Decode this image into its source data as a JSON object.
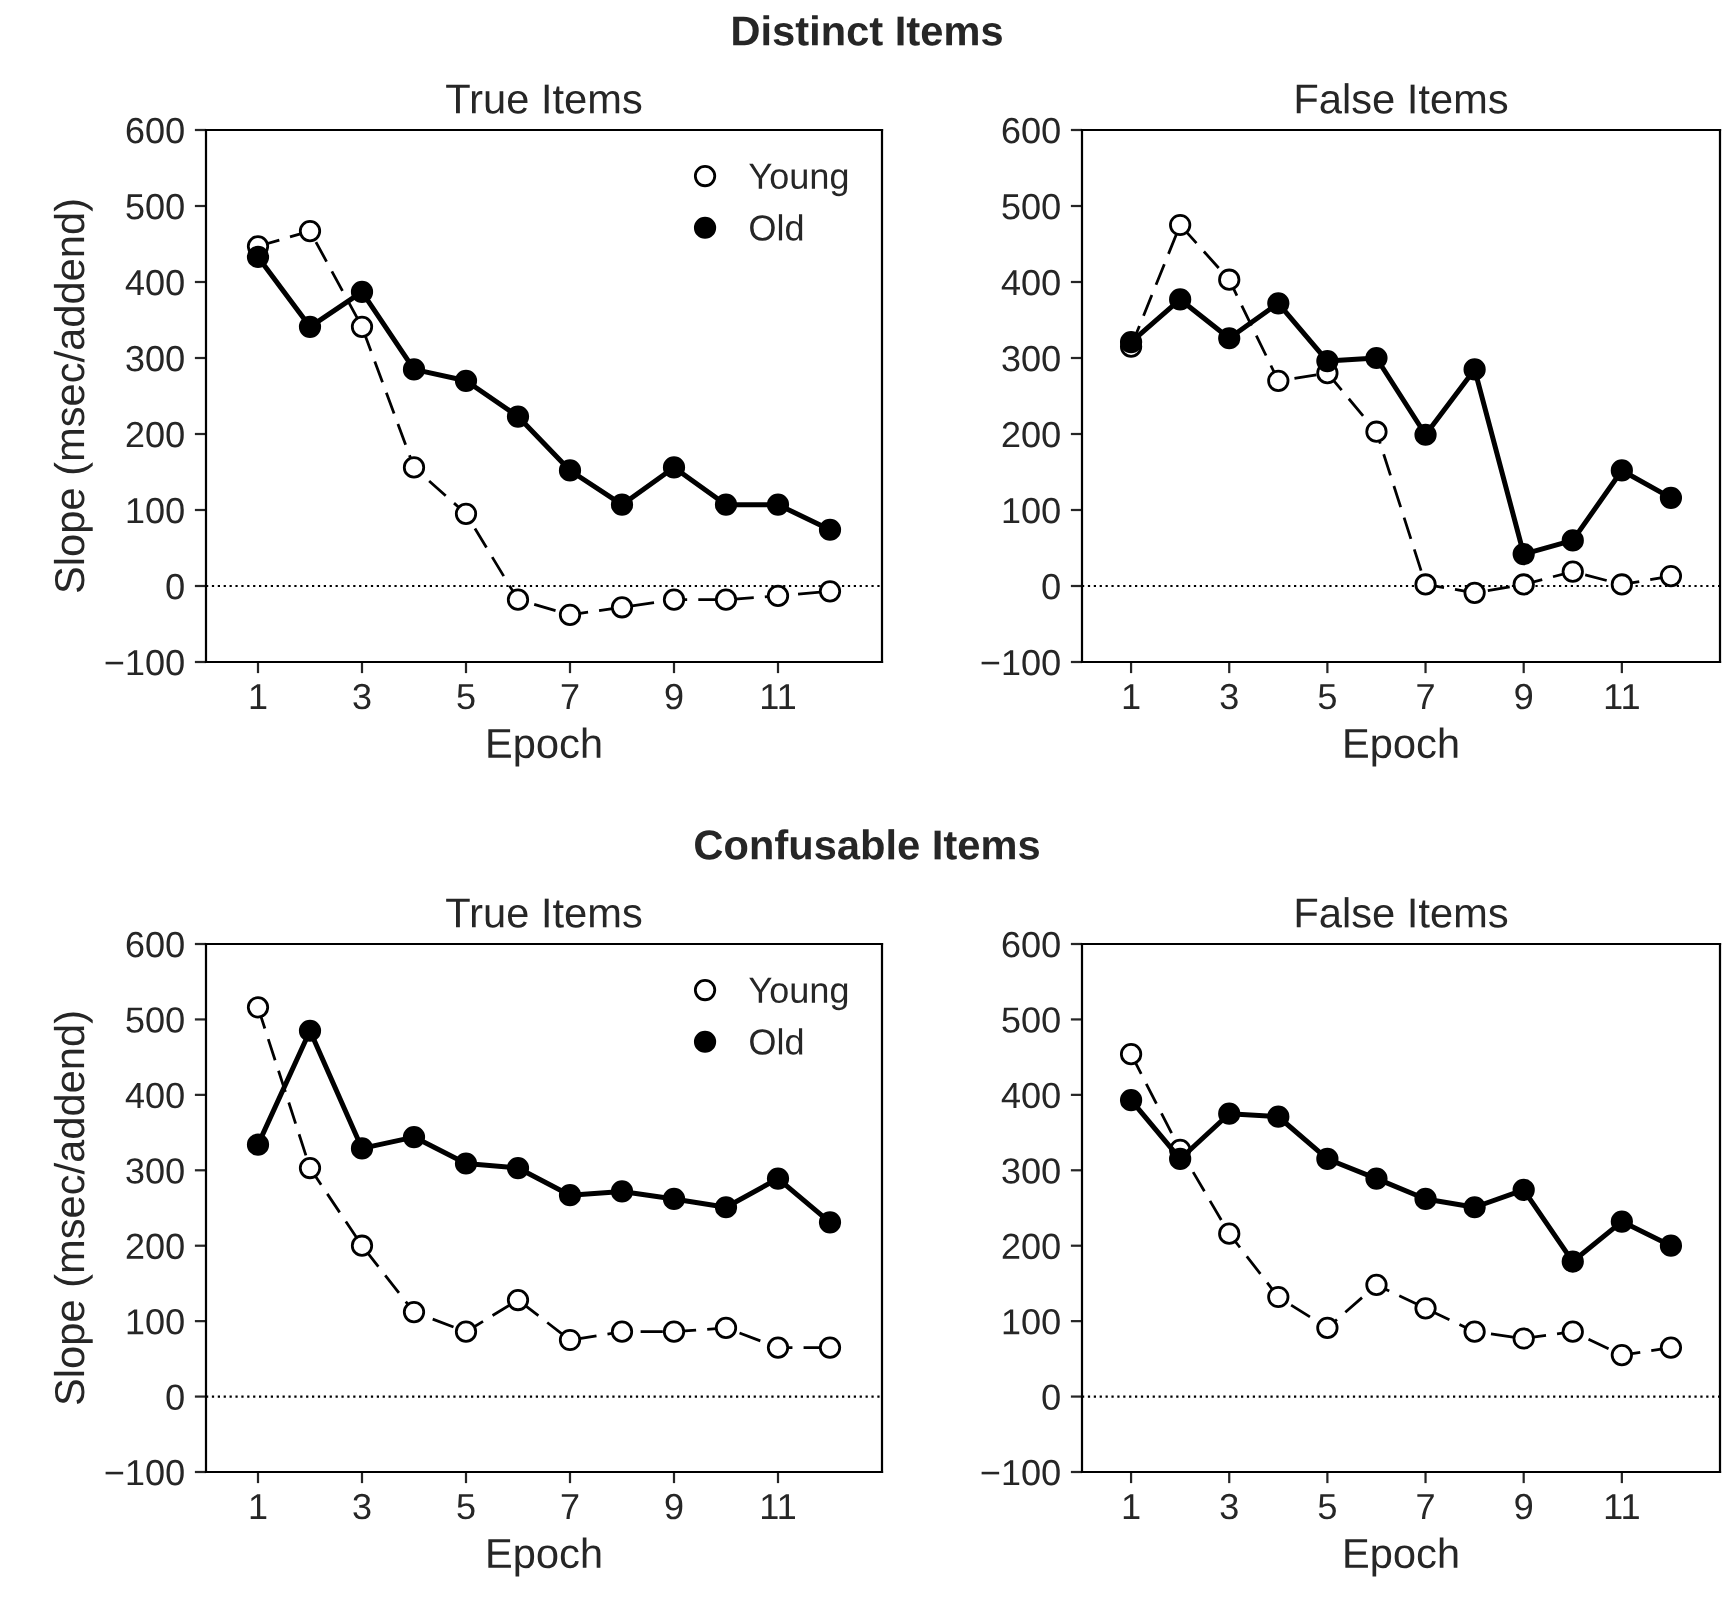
{
  "chart_data": [
    {
      "type": "line",
      "title": "True Items",
      "annotations": [
        "Distinct Items"
      ],
      "xlabel": "Epoch",
      "ylabel": "Slope (msec/addend)",
      "x": [
        1,
        2,
        3,
        4,
        5,
        6,
        7,
        8,
        9,
        10,
        11,
        12
      ],
      "xlim": [
        0,
        13
      ],
      "xticks": [
        1,
        3,
        5,
        7,
        9,
        11
      ],
      "ylim": [
        -100,
        600
      ],
      "yticks": [
        -100,
        0,
        100,
        200,
        300,
        400,
        500,
        600
      ],
      "grid": false,
      "legend": "top right",
      "marker": "circle",
      "ref_lines": [
        {
          "axis": "y",
          "value": 0,
          "line_style": "dotted",
          "color": "#000000"
        }
      ],
      "series": [
        {
          "name": "Young",
          "color": "#ffffff",
          "line_style": "dashed",
          "values": [
            447,
            467,
            341,
            156,
            95,
            -18,
            -38,
            -28,
            -18,
            -18,
            -13,
            -7
          ]
        },
        {
          "name": "Old",
          "color": "#000000",
          "line_style": "solid",
          "values": [
            433,
            341,
            387,
            285,
            270,
            223,
            152,
            107,
            156,
            107,
            107,
            74
          ]
        }
      ]
    },
    {
      "type": "line",
      "title": "False Items",
      "xlabel": "Epoch",
      "x": [
        1,
        2,
        3,
        4,
        5,
        6,
        7,
        8,
        9,
        10,
        11,
        12
      ],
      "xlim": [
        0,
        13
      ],
      "xticks": [
        1,
        3,
        5,
        7,
        9,
        11
      ],
      "ylim": [
        -100,
        600
      ],
      "yticks": [
        -100,
        0,
        100,
        200,
        300,
        400,
        500,
        600
      ],
      "grid": false,
      "marker": "circle",
      "ref_lines": [
        {
          "axis": "y",
          "value": 0,
          "line_style": "dotted",
          "color": "#000000"
        }
      ],
      "series": [
        {
          "color": "#ffffff",
          "line_style": "dashed",
          "values": [
            315,
            475,
            403,
            270,
            280,
            203,
            2,
            -9,
            2,
            19,
            2,
            13
          ]
        },
        {
          "color": "#000000",
          "line_style": "solid",
          "values": [
            321,
            377,
            326,
            372,
            296,
            300,
            199,
            285,
            42,
            60,
            152,
            116
          ]
        }
      ]
    },
    {
      "type": "line",
      "title": "True Items",
      "annotations": [
        "Confusable Items"
      ],
      "xlabel": "Epoch",
      "ylabel": "Slope (msec/addend)",
      "x": [
        1,
        2,
        3,
        4,
        5,
        6,
        7,
        8,
        9,
        10,
        11,
        12
      ],
      "xlim": [
        0,
        13
      ],
      "xticks": [
        1,
        3,
        5,
        7,
        9,
        11
      ],
      "ylim": [
        -100,
        600
      ],
      "yticks": [
        -100,
        0,
        100,
        200,
        300,
        400,
        500,
        600
      ],
      "grid": false,
      "legend": "top right",
      "marker": "circle",
      "ref_lines": [
        {
          "axis": "y",
          "value": 0,
          "line_style": "dotted",
          "color": "#000000"
        }
      ],
      "series": [
        {
          "name": "Young",
          "color": "#ffffff",
          "line_style": "dashed",
          "values": [
            516,
            303,
            200,
            112,
            86,
            128,
            75,
            86,
            86,
            91,
            65,
            65
          ]
        },
        {
          "name": "Old",
          "color": "#000000",
          "line_style": "solid",
          "values": [
            334,
            485,
            329,
            344,
            309,
            303,
            267,
            272,
            262,
            251,
            289,
            231
          ]
        }
      ]
    },
    {
      "type": "line",
      "title": "False Items",
      "xlabel": "Epoch",
      "x": [
        1,
        2,
        3,
        4,
        5,
        6,
        7,
        8,
        9,
        10,
        11,
        12
      ],
      "xlim": [
        0,
        13
      ],
      "xticks": [
        1,
        3,
        5,
        7,
        9,
        11
      ],
      "ylim": [
        -100,
        600
      ],
      "yticks": [
        -100,
        0,
        100,
        200,
        300,
        400,
        500,
        600
      ],
      "grid": false,
      "marker": "circle",
      "ref_lines": [
        {
          "axis": "y",
          "value": 0,
          "line_style": "dotted",
          "color": "#000000"
        }
      ],
      "series": [
        {
          "color": "#ffffff",
          "line_style": "dashed",
          "values": [
            454,
            327,
            216,
            132,
            91,
            148,
            117,
            86,
            77,
            86,
            55,
            65
          ]
        },
        {
          "color": "#000000",
          "line_style": "solid",
          "values": [
            393,
            315,
            375,
            371,
            315,
            289,
            262,
            251,
            274,
            179,
            232,
            200
          ]
        }
      ]
    }
  ]
}
